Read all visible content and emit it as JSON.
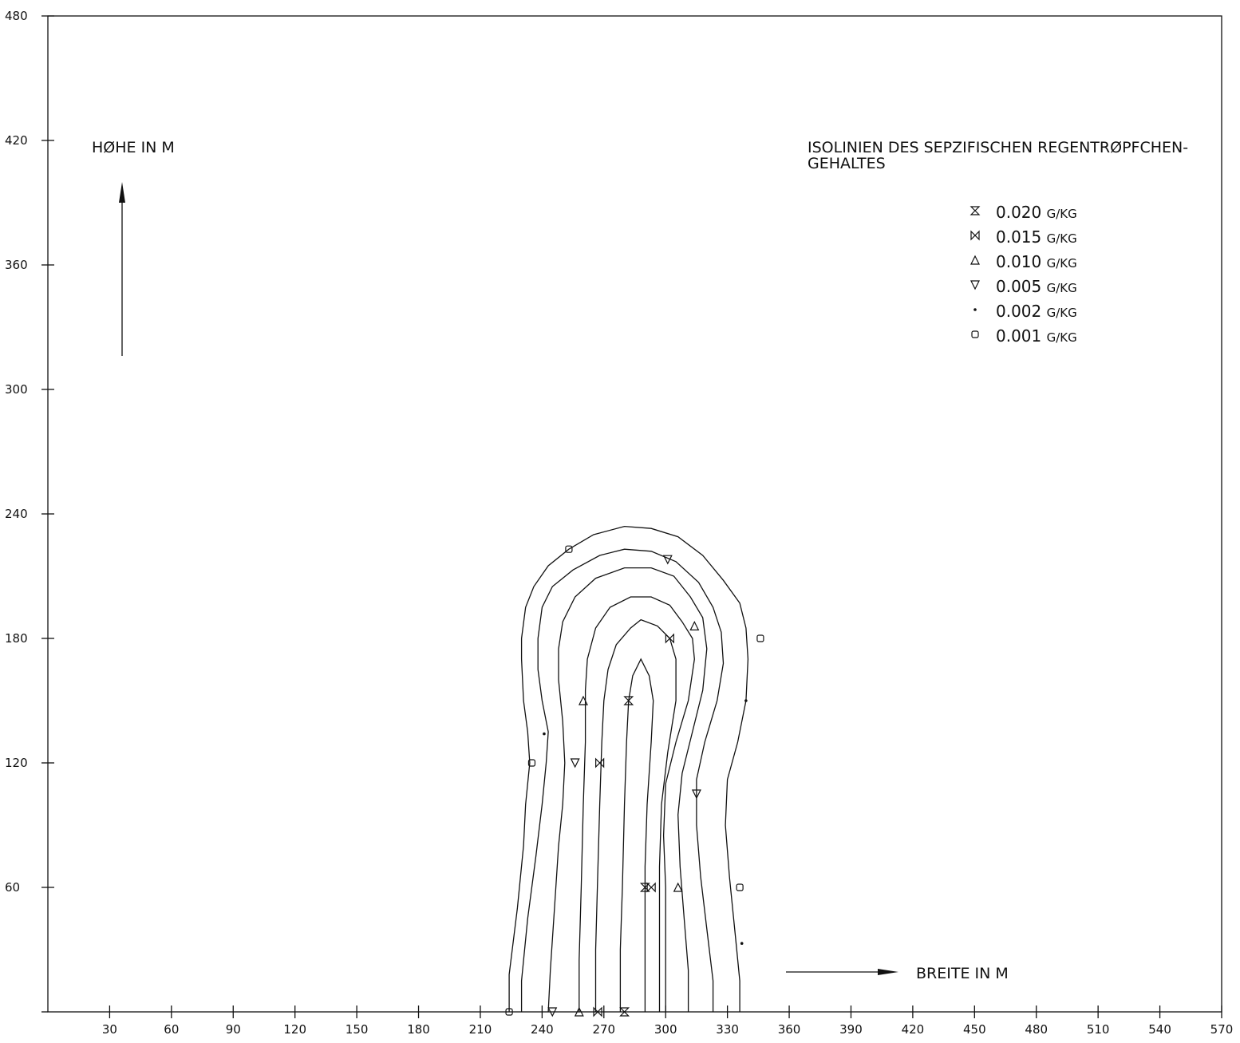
{
  "chart_data": {
    "type": "line",
    "title": "ISOLINIEN DES SEPZIFISCHEN REGENTRØPFCHEN-",
    "title_line2": "GEHALTES",
    "xlabel": "BREITE IN M",
    "ylabel": "HØHE IN M",
    "xlim": [
      0,
      570
    ],
    "ylim": [
      0,
      480
    ],
    "grid": false,
    "legend_position": "top-right",
    "x_ticks": [
      30,
      60,
      90,
      120,
      150,
      180,
      210,
      240,
      270,
      300,
      330,
      360,
      390,
      420,
      450,
      480,
      510,
      540,
      570
    ],
    "y_ticks": [
      60,
      120,
      180,
      240,
      300,
      360,
      420,
      480
    ],
    "x_tick_labels": [
      "30",
      "60",
      "90",
      "120",
      "150",
      "180",
      "210",
      "240",
      "270",
      "300",
      "330",
      "360",
      "390",
      "420",
      "450",
      "480",
      "510",
      "540",
      "570"
    ],
    "y_tick_labels": [
      "60",
      "120",
      "180",
      "240",
      "300",
      "360",
      "420",
      "480"
    ],
    "legend": [
      {
        "marker": "hourglass",
        "value": "0.020",
        "unit": "G/KG"
      },
      {
        "marker": "bowtie",
        "value": "0.015",
        "unit": "G/KG"
      },
      {
        "marker": "triangle-up",
        "value": "0.010",
        "unit": "G/KG"
      },
      {
        "marker": "triangle-down",
        "value": "0.005",
        "unit": "G/KG"
      },
      {
        "marker": "dot",
        "value": "0.002",
        "unit": "G/KG"
      },
      {
        "marker": "square",
        "value": "0.001",
        "unit": "G/KG"
      }
    ],
    "series": [
      {
        "level": "0.001",
        "marker": "square",
        "points": [
          [
            224,
            0
          ],
          [
            224,
            18
          ],
          [
            228,
            50
          ],
          [
            231,
            80
          ],
          [
            232,
            100
          ],
          [
            234,
            120
          ],
          [
            233,
            135
          ],
          [
            231,
            150
          ],
          [
            230,
            170
          ],
          [
            230,
            180
          ],
          [
            232,
            195
          ],
          [
            236,
            205
          ],
          [
            243,
            215
          ],
          [
            253,
            223
          ],
          [
            265,
            230
          ],
          [
            280,
            234
          ],
          [
            293,
            233
          ],
          [
            306,
            229
          ],
          [
            318,
            220
          ],
          [
            328,
            208
          ],
          [
            336,
            197
          ],
          [
            339,
            185
          ],
          [
            340,
            170
          ],
          [
            339,
            150
          ],
          [
            335,
            130
          ],
          [
            330,
            112
          ],
          [
            329,
            90
          ],
          [
            331,
            65
          ],
          [
            334,
            35
          ],
          [
            336,
            15
          ],
          [
            336,
            0
          ]
        ],
        "markers": [
          [
            224,
            0
          ],
          [
            235,
            120
          ],
          [
            253,
            223
          ],
          [
            346,
            180
          ],
          [
            336,
            60
          ]
        ]
      },
      {
        "level": "0.002",
        "marker": "dot",
        "points": [
          [
            230,
            0
          ],
          [
            230,
            15
          ],
          [
            233,
            45
          ],
          [
            237,
            75
          ],
          [
            240,
            100
          ],
          [
            242,
            120
          ],
          [
            243,
            135
          ],
          [
            240,
            150
          ],
          [
            238,
            165
          ],
          [
            238,
            180
          ],
          [
            240,
            195
          ],
          [
            245,
            205
          ],
          [
            255,
            213
          ],
          [
            268,
            220
          ],
          [
            280,
            223
          ],
          [
            293,
            222
          ],
          [
            305,
            217
          ],
          [
            316,
            207
          ],
          [
            323,
            195
          ],
          [
            327,
            183
          ],
          [
            328,
            168
          ],
          [
            325,
            150
          ],
          [
            319,
            130
          ],
          [
            315,
            112
          ],
          [
            315,
            90
          ],
          [
            317,
            65
          ],
          [
            320,
            40
          ],
          [
            323,
            15
          ],
          [
            323,
            0
          ]
        ],
        "markers": [
          [
            241,
            134
          ],
          [
            339,
            150
          ],
          [
            337,
            33
          ]
        ]
      },
      {
        "level": "0.005",
        "marker": "triangle-down",
        "points": [
          [
            243,
            0
          ],
          [
            244,
            20
          ],
          [
            246,
            50
          ],
          [
            248,
            80
          ],
          [
            250,
            100
          ],
          [
            251,
            120
          ],
          [
            250,
            140
          ],
          [
            248,
            160
          ],
          [
            248,
            175
          ],
          [
            250,
            188
          ],
          [
            256,
            200
          ],
          [
            266,
            209
          ],
          [
            280,
            214
          ],
          [
            293,
            214
          ],
          [
            304,
            210
          ],
          [
            312,
            200
          ],
          [
            318,
            190
          ],
          [
            320,
            175
          ],
          [
            318,
            155
          ],
          [
            313,
            135
          ],
          [
            308,
            115
          ],
          [
            306,
            95
          ],
          [
            307,
            70
          ],
          [
            309,
            45
          ],
          [
            311,
            20
          ],
          [
            311,
            0
          ]
        ],
        "markers": [
          [
            245,
            0
          ],
          [
            256,
            120
          ],
          [
            301,
            218
          ],
          [
            315,
            105
          ]
        ]
      },
      {
        "level": "0.010",
        "marker": "triangle-up",
        "points": [
          [
            258,
            0
          ],
          [
            258,
            25
          ],
          [
            259,
            60
          ],
          [
            260,
            100
          ],
          [
            261,
            130
          ],
          [
            261,
            155
          ],
          [
            262,
            170
          ],
          [
            266,
            185
          ],
          [
            273,
            195
          ],
          [
            283,
            200
          ],
          [
            293,
            200
          ],
          [
            302,
            196
          ],
          [
            308,
            188
          ],
          [
            313,
            180
          ],
          [
            314,
            170
          ],
          [
            311,
            150
          ],
          [
            305,
            130
          ],
          [
            300,
            110
          ],
          [
            299,
            85
          ],
          [
            300,
            60
          ],
          [
            300,
            30
          ],
          [
            300,
            0
          ]
        ],
        "markers": [
          [
            258,
            0
          ],
          [
            260,
            150
          ],
          [
            314,
            186
          ],
          [
            306,
            60
          ]
        ]
      },
      {
        "level": "0.015",
        "marker": "bowtie",
        "points": [
          [
            266,
            0
          ],
          [
            266,
            30
          ],
          [
            267,
            65
          ],
          [
            268,
            100
          ],
          [
            269,
            130
          ],
          [
            270,
            150
          ],
          [
            272,
            165
          ],
          [
            276,
            177
          ],
          [
            283,
            185
          ],
          [
            288,
            189
          ],
          [
            296,
            186
          ],
          [
            302,
            180
          ],
          [
            305,
            170
          ],
          [
            305,
            150
          ],
          [
            301,
            125
          ],
          [
            298,
            100
          ],
          [
            297,
            70
          ],
          [
            297,
            40
          ],
          [
            297,
            0
          ]
        ],
        "markers": [
          [
            267,
            0
          ],
          [
            268,
            120
          ],
          [
            302,
            180
          ],
          [
            293,
            60
          ]
        ]
      },
      {
        "level": "0.020",
        "marker": "hourglass",
        "points": [
          [
            278,
            0
          ],
          [
            278,
            30
          ],
          [
            279,
            60
          ],
          [
            280,
            100
          ],
          [
            281,
            130
          ],
          [
            282,
            150
          ],
          [
            284,
            162
          ],
          [
            288,
            170
          ],
          [
            292,
            162
          ],
          [
            294,
            150
          ],
          [
            293,
            130
          ],
          [
            291,
            100
          ],
          [
            290,
            70
          ],
          [
            290,
            30
          ],
          [
            290,
            0
          ]
        ],
        "markers": [
          [
            280,
            0
          ],
          [
            282,
            150
          ],
          [
            290,
            60
          ]
        ]
      }
    ]
  }
}
